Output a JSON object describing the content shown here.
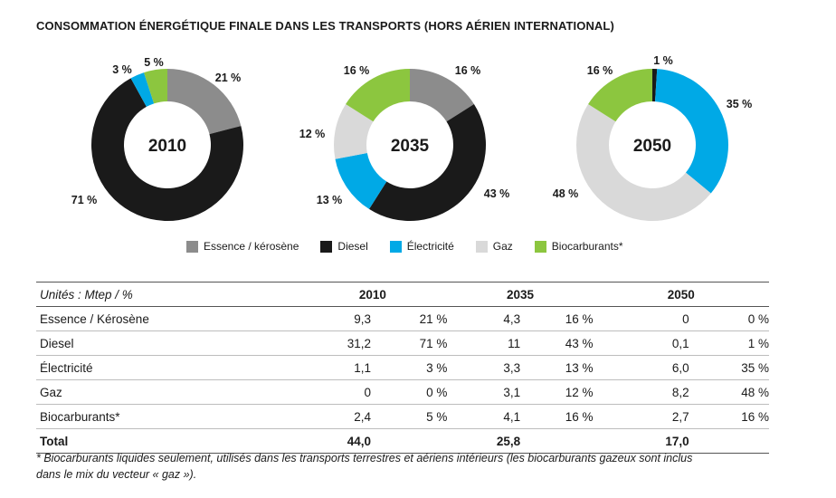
{
  "title": "CONSOMMATION ÉNERGÉTIQUE FINALE DANS LES TRANSPORTS (HORS AÉRIEN INTERNATIONAL)",
  "chart_data": {
    "type": "pie",
    "style": "donut",
    "categories": [
      "Essence / kérosène",
      "Diesel",
      "Électricité",
      "Gaz",
      "Biocarburants*"
    ],
    "colors": [
      "#8c8c8c",
      "#1a1a1a",
      "#00a9e6",
      "#d9d9d9",
      "#8cc63f"
    ],
    "series": [
      {
        "name": "2010",
        "values": [
          21,
          71,
          3,
          0,
          5
        ],
        "labels": [
          "21 %",
          "71 %",
          "3 %",
          "",
          "5 %"
        ]
      },
      {
        "name": "2035",
        "values": [
          16,
          43,
          13,
          12,
          16
        ],
        "labels": [
          "16 %",
          "43 %",
          "13 %",
          "12 %",
          "16 %"
        ]
      },
      {
        "name": "2050",
        "values": [
          0,
          1,
          35,
          48,
          16
        ],
        "labels": [
          "",
          "1 %",
          "35 %",
          "48 %",
          "16 %"
        ]
      }
    ],
    "legend_position": "bottom"
  },
  "table": {
    "units": "Unités : Mtep / %",
    "years": [
      "2010",
      "2035",
      "2050"
    ],
    "rows": [
      {
        "label": "Essence / Kérosène",
        "cells": [
          "9,3",
          "21 %",
          "4,3",
          "16 %",
          "0",
          "0 %"
        ]
      },
      {
        "label": "Diesel",
        "cells": [
          "31,2",
          "71 %",
          "11",
          "43 %",
          "0,1",
          "1 %"
        ]
      },
      {
        "label": "Électricité",
        "cells": [
          "1,1",
          "3 %",
          "3,3",
          "13 %",
          "6,0",
          "35 %"
        ]
      },
      {
        "label": "Gaz",
        "cells": [
          "0",
          "0 %",
          "3,1",
          "12 %",
          "8,2",
          "48 %"
        ]
      },
      {
        "label": "Biocarburants*",
        "cells": [
          "2,4",
          "5 %",
          "4,1",
          "16 %",
          "2,7",
          "16 %"
        ]
      }
    ],
    "total": {
      "label": "Total",
      "cells": [
        "44,0",
        "25,8",
        "17,0"
      ]
    }
  },
  "footnote_line1": "* Biocarburants liquides seulement, utilisés dans les transports terrestres et aériens intérieurs (les biocarburants gazeux sont inclus",
  "footnote_line2": "dans le mix du vecteur « gaz »)."
}
